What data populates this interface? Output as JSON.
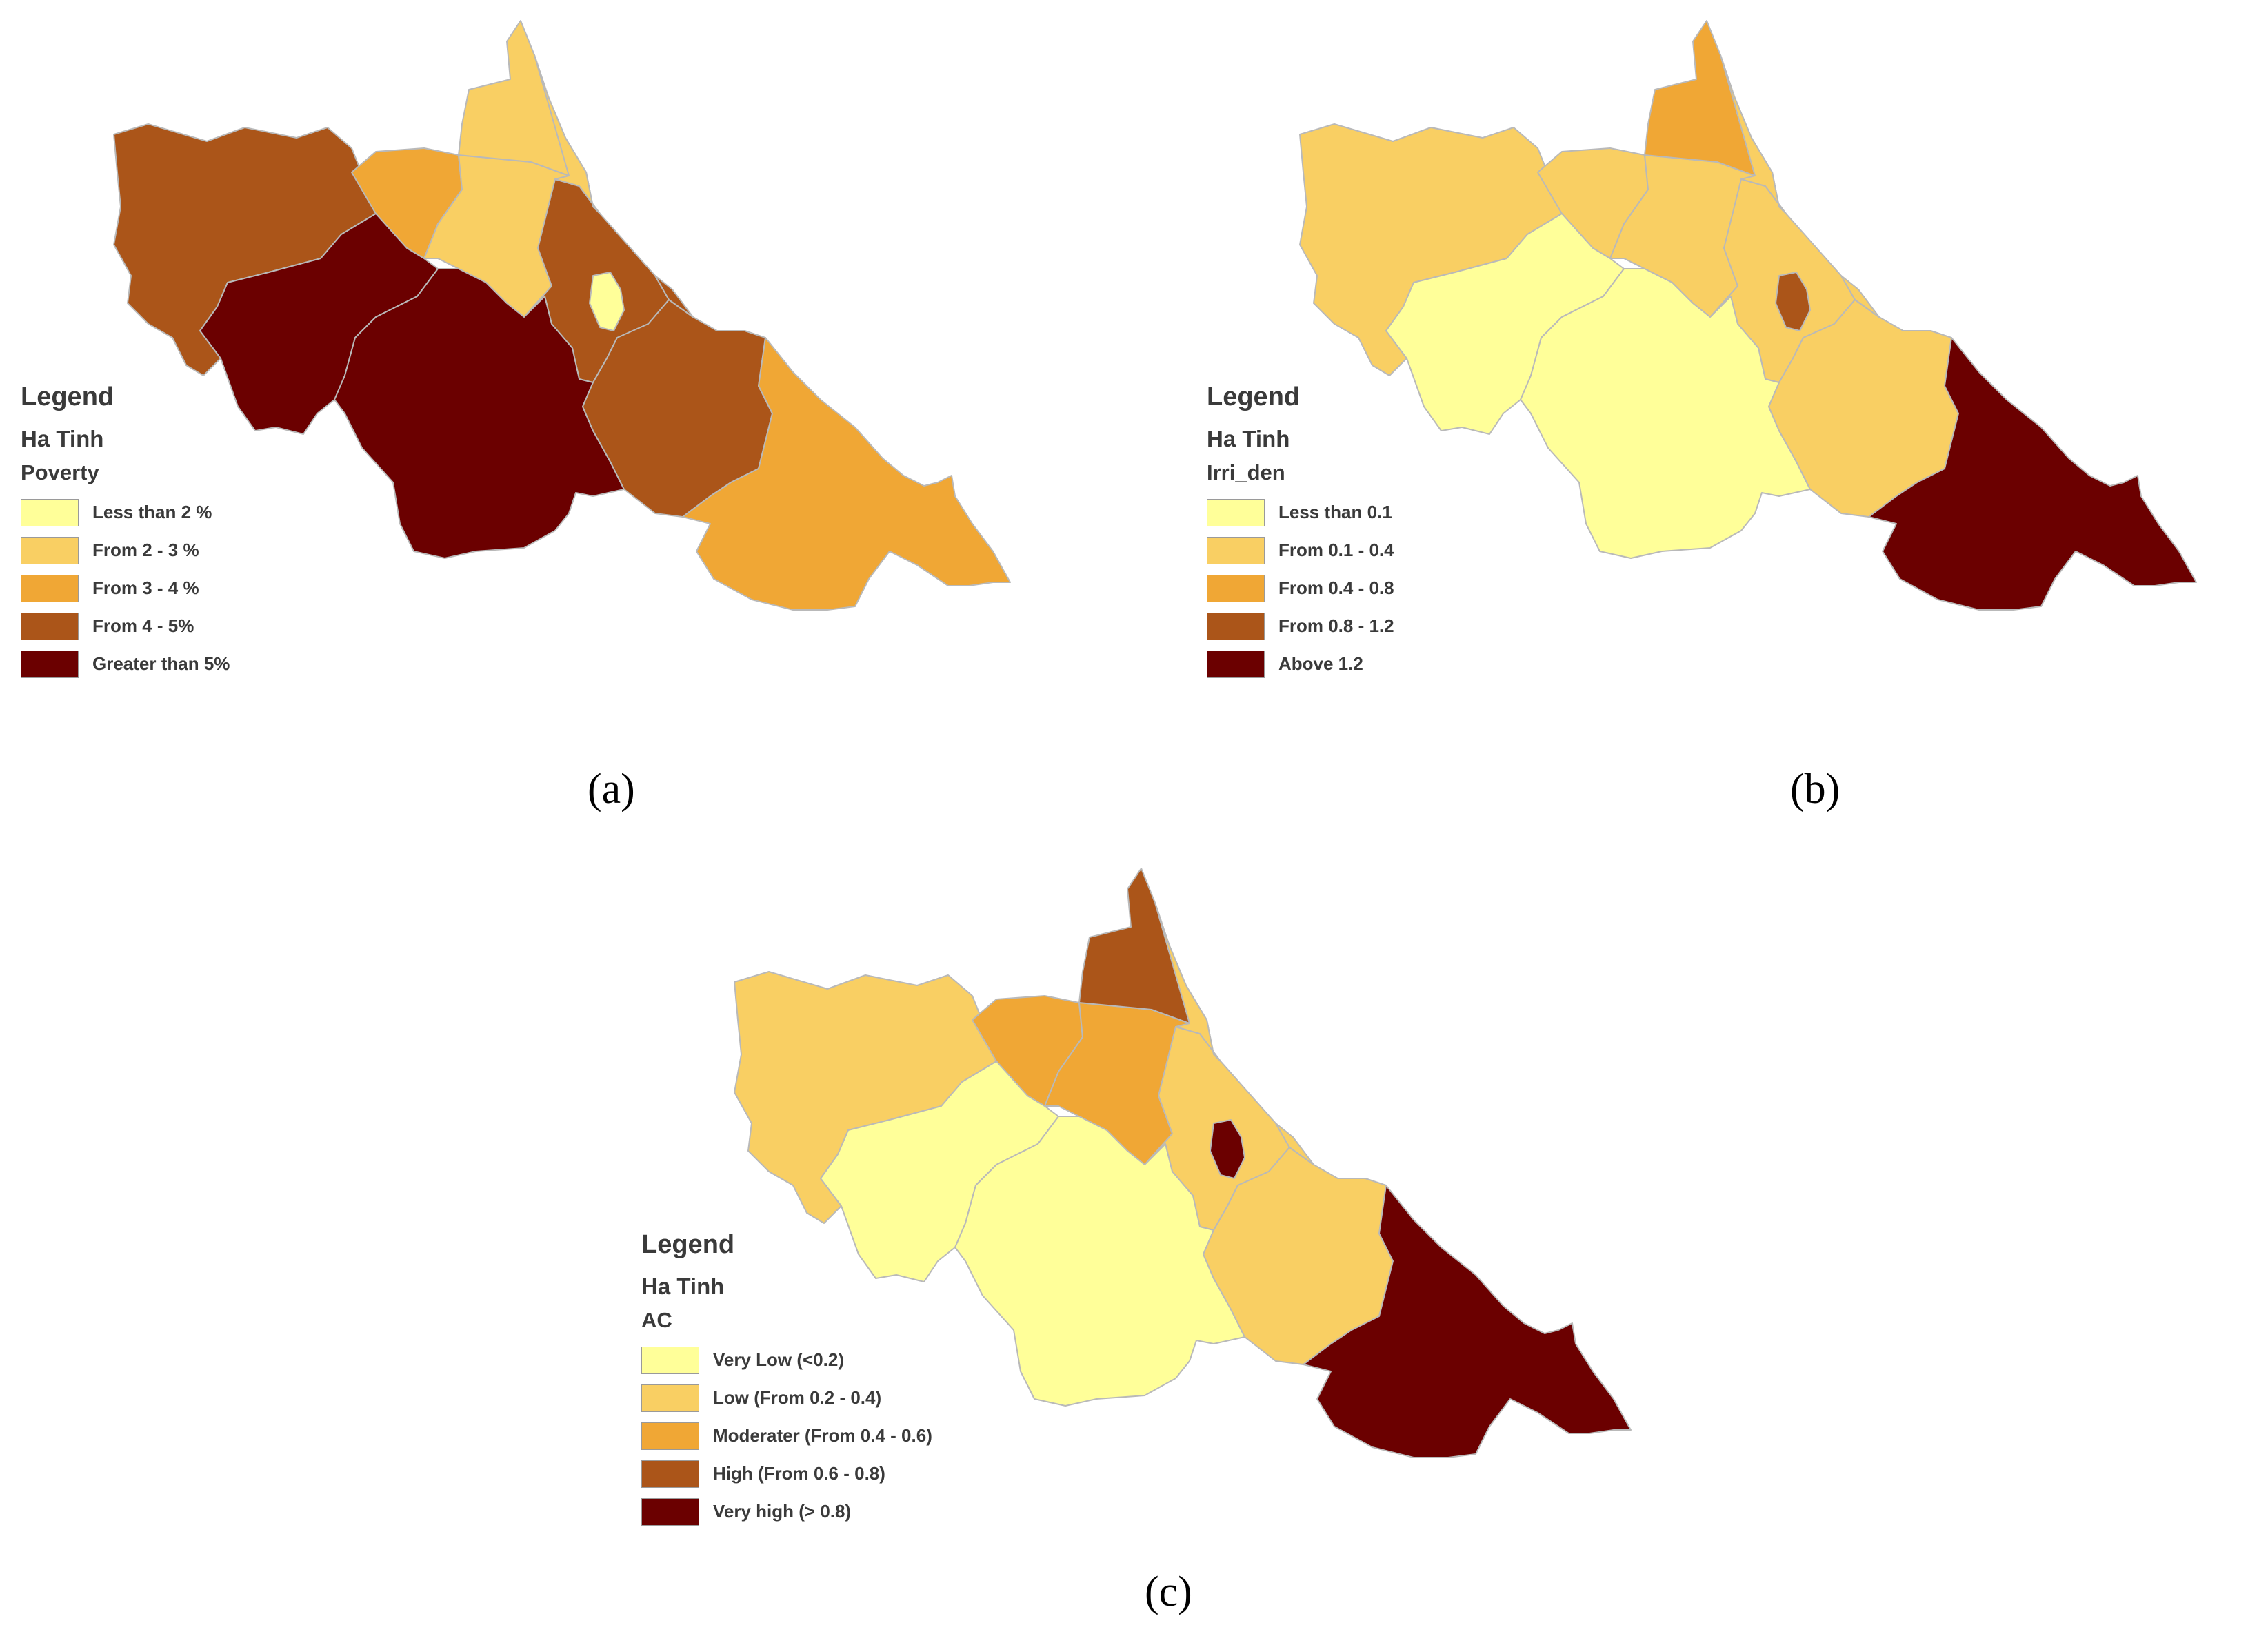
{
  "colors": {
    "class1": "#ffff99",
    "class2": "#f9cf63",
    "class3": "#f0a735",
    "class4": "#ab5519",
    "class5": "#6b0000"
  },
  "panels": [
    {
      "caption": "(a)",
      "legend": {
        "title": "Legend",
        "layer": "Ha Tinh",
        "field": "Poverty",
        "items": [
          {
            "label": "Less than 2 %",
            "color": "#ffff99"
          },
          {
            "label": "From 2 - 3 %",
            "color": "#f9cf63"
          },
          {
            "label": "From 3 - 4 %",
            "color": "#f0a735"
          },
          {
            "label": "From 4 - 5%",
            "color": "#ab5519"
          },
          {
            "label": "Greater than 5%",
            "color": "#6b0000"
          }
        ]
      },
      "district_classes": [
        4,
        3,
        2,
        2,
        4,
        1,
        5,
        5,
        4,
        3,
        4,
        2
      ]
    },
    {
      "caption": "(b)",
      "legend": {
        "title": "Legend",
        "layer": "Ha Tinh",
        "field": "Irri_den",
        "items": [
          {
            "label": "Less than 0.1",
            "color": "#ffff99"
          },
          {
            "label": "From 0.1 - 0.4",
            "color": "#f9cf63"
          },
          {
            "label": "From 0.4 - 0.8",
            "color": "#f0a735"
          },
          {
            "label": "From 0.8 - 1.2",
            "color": "#ab5519"
          },
          {
            "label": "Above 1.2",
            "color": "#6b0000"
          }
        ]
      },
      "district_classes": [
        2,
        2,
        2,
        3,
        2,
        4,
        1,
        1,
        2,
        5,
        2,
        2
      ]
    },
    {
      "caption": "(c)",
      "legend": {
        "title": "Legend",
        "layer": "Ha Tinh",
        "field": "AC",
        "items": [
          {
            "label": "Very Low (<0.2)",
            "color": "#ffff99"
          },
          {
            "label": "Low (From 0.2 - 0.4)",
            "color": "#f9cf63"
          },
          {
            "label": "Moderater (From 0.4 - 0.6)",
            "color": "#f0a735"
          },
          {
            "label": "High (From 0.6 - 0.8)",
            "color": "#ab5519"
          },
          {
            "label": "Very high (> 0.8)",
            "color": "#6b0000"
          }
        ]
      },
      "district_classes": [
        2,
        3,
        3,
        4,
        2,
        5,
        1,
        1,
        2,
        5,
        2,
        2
      ]
    }
  ]
}
